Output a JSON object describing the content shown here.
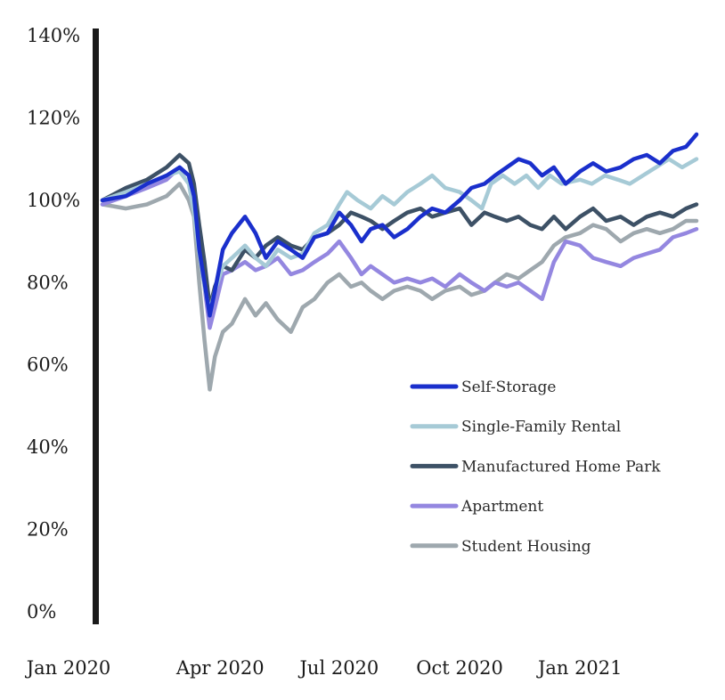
{
  "chart_data": {
    "type": "line",
    "title": "",
    "xlabel": "",
    "ylabel": "",
    "ylim": [
      0,
      140
    ],
    "xlim": [
      "2020-01-02",
      "2021-03-31"
    ],
    "grid": false,
    "legend_position": "lower-right",
    "y_ticks": [
      {
        "value": 0,
        "label": "0%"
      },
      {
        "value": 20,
        "label": "20%"
      },
      {
        "value": 40,
        "label": "40%"
      },
      {
        "value": 60,
        "label": "60%"
      },
      {
        "value": 80,
        "label": "80%"
      },
      {
        "value": 100,
        "label": "100%"
      },
      {
        "value": 120,
        "label": "120%"
      },
      {
        "value": 140,
        "label": "140%"
      }
    ],
    "x_ticks": [
      {
        "value": "2020-01-02",
        "label": "Jan 2020"
      },
      {
        "value": "2020-04-01",
        "label": "Apr 2020"
      },
      {
        "value": "2020-07-01",
        "label": "Jul 2020"
      },
      {
        "value": "2020-10-01",
        "label": "Oct 2020"
      },
      {
        "value": "2021-01-01",
        "label": "Jan 2021"
      }
    ],
    "series": [
      {
        "name": "Self-Storage",
        "color": "#1a2fcc",
        "points": [
          [
            "2020-01-02",
            100
          ],
          [
            "2020-01-20",
            101
          ],
          [
            "2020-02-05",
            104
          ],
          [
            "2020-02-20",
            106
          ],
          [
            "2020-03-01",
            108
          ],
          [
            "2020-03-08",
            106
          ],
          [
            "2020-03-12",
            101
          ],
          [
            "2020-03-16",
            88
          ],
          [
            "2020-03-20",
            80
          ],
          [
            "2020-03-24",
            72
          ],
          [
            "2020-03-28",
            78
          ],
          [
            "2020-04-03",
            88
          ],
          [
            "2020-04-10",
            92
          ],
          [
            "2020-04-20",
            96
          ],
          [
            "2020-04-28",
            92
          ],
          [
            "2020-05-06",
            86
          ],
          [
            "2020-05-15",
            90
          ],
          [
            "2020-05-25",
            88
          ],
          [
            "2020-06-03",
            86
          ],
          [
            "2020-06-12",
            91
          ],
          [
            "2020-06-22",
            92
          ],
          [
            "2020-07-01",
            97
          ],
          [
            "2020-07-10",
            94
          ],
          [
            "2020-07-18",
            90
          ],
          [
            "2020-07-25",
            93
          ],
          [
            "2020-08-03",
            94
          ],
          [
            "2020-08-12",
            91
          ],
          [
            "2020-08-22",
            93
          ],
          [
            "2020-09-01",
            96
          ],
          [
            "2020-09-10",
            98
          ],
          [
            "2020-09-20",
            97
          ],
          [
            "2020-10-01",
            100
          ],
          [
            "2020-10-10",
            103
          ],
          [
            "2020-10-20",
            104
          ],
          [
            "2020-10-28",
            106
          ],
          [
            "2020-11-06",
            108
          ],
          [
            "2020-11-15",
            110
          ],
          [
            "2020-11-24",
            109
          ],
          [
            "2020-12-03",
            106
          ],
          [
            "2020-12-12",
            108
          ],
          [
            "2020-12-21",
            104
          ],
          [
            "2021-01-01",
            107
          ],
          [
            "2021-01-11",
            109
          ],
          [
            "2021-01-21",
            107
          ],
          [
            "2021-02-01",
            108
          ],
          [
            "2021-02-11",
            110
          ],
          [
            "2021-02-21",
            111
          ],
          [
            "2021-03-03",
            109
          ],
          [
            "2021-03-13",
            112
          ],
          [
            "2021-03-23",
            113
          ],
          [
            "2021-03-31",
            116
          ]
        ]
      },
      {
        "name": "Single-Family Rental",
        "color": "#a6cad6",
        "points": [
          [
            "2020-01-02",
            100
          ],
          [
            "2020-01-20",
            102
          ],
          [
            "2020-02-05",
            104
          ],
          [
            "2020-02-20",
            106
          ],
          [
            "2020-03-01",
            107
          ],
          [
            "2020-03-08",
            104
          ],
          [
            "2020-03-12",
            97
          ],
          [
            "2020-03-16",
            87
          ],
          [
            "2020-03-20",
            79
          ],
          [
            "2020-03-24",
            73
          ],
          [
            "2020-03-28",
            78
          ],
          [
            "2020-04-03",
            84
          ],
          [
            "2020-04-10",
            86
          ],
          [
            "2020-04-20",
            89
          ],
          [
            "2020-04-28",
            86
          ],
          [
            "2020-05-06",
            84
          ],
          [
            "2020-05-15",
            88
          ],
          [
            "2020-05-25",
            86
          ],
          [
            "2020-06-03",
            87
          ],
          [
            "2020-06-12",
            92
          ],
          [
            "2020-06-22",
            94
          ],
          [
            "2020-07-01",
            99
          ],
          [
            "2020-07-07",
            102
          ],
          [
            "2020-07-15",
            100
          ],
          [
            "2020-07-25",
            98
          ],
          [
            "2020-08-03",
            101
          ],
          [
            "2020-08-12",
            99
          ],
          [
            "2020-08-22",
            102
          ],
          [
            "2020-09-01",
            104
          ],
          [
            "2020-09-10",
            106
          ],
          [
            "2020-09-20",
            103
          ],
          [
            "2020-10-01",
            102
          ],
          [
            "2020-10-10",
            100
          ],
          [
            "2020-10-18",
            98
          ],
          [
            "2020-10-25",
            104
          ],
          [
            "2020-11-03",
            106
          ],
          [
            "2020-11-12",
            104
          ],
          [
            "2020-11-21",
            106
          ],
          [
            "2020-11-30",
            103
          ],
          [
            "2020-12-09",
            106
          ],
          [
            "2020-12-18",
            104
          ],
          [
            "2021-01-01",
            105
          ],
          [
            "2021-01-10",
            104
          ],
          [
            "2021-01-20",
            106
          ],
          [
            "2021-01-30",
            105
          ],
          [
            "2021-02-08",
            104
          ],
          [
            "2021-02-18",
            106
          ],
          [
            "2021-02-28",
            108
          ],
          [
            "2021-03-10",
            110
          ],
          [
            "2021-03-20",
            108
          ],
          [
            "2021-03-31",
            110
          ]
        ]
      },
      {
        "name": "Manufactured Home Park",
        "color": "#3d5166",
        "points": [
          [
            "2020-01-02",
            100
          ],
          [
            "2020-01-20",
            103
          ],
          [
            "2020-02-05",
            105
          ],
          [
            "2020-02-20",
            108
          ],
          [
            "2020-03-01",
            111
          ],
          [
            "2020-03-08",
            109
          ],
          [
            "2020-03-12",
            104
          ],
          [
            "2020-03-16",
            94
          ],
          [
            "2020-03-20",
            85
          ],
          [
            "2020-03-24",
            74
          ],
          [
            "2020-03-28",
            79
          ],
          [
            "2020-04-03",
            84
          ],
          [
            "2020-04-10",
            83
          ],
          [
            "2020-04-20",
            88
          ],
          [
            "2020-04-28",
            86
          ],
          [
            "2020-05-06",
            89
          ],
          [
            "2020-05-15",
            91
          ],
          [
            "2020-05-25",
            89
          ],
          [
            "2020-06-03",
            88
          ],
          [
            "2020-06-12",
            91
          ],
          [
            "2020-06-22",
            92
          ],
          [
            "2020-07-01",
            94
          ],
          [
            "2020-07-10",
            97
          ],
          [
            "2020-07-18",
            96
          ],
          [
            "2020-07-25",
            95
          ],
          [
            "2020-08-03",
            93
          ],
          [
            "2020-08-12",
            95
          ],
          [
            "2020-08-22",
            97
          ],
          [
            "2020-09-01",
            98
          ],
          [
            "2020-09-10",
            96
          ],
          [
            "2020-09-20",
            97
          ],
          [
            "2020-10-01",
            98
          ],
          [
            "2020-10-10",
            94
          ],
          [
            "2020-10-20",
            97
          ],
          [
            "2020-10-28",
            96
          ],
          [
            "2020-11-06",
            95
          ],
          [
            "2020-11-15",
            96
          ],
          [
            "2020-11-24",
            94
          ],
          [
            "2020-12-03",
            93
          ],
          [
            "2020-12-12",
            96
          ],
          [
            "2020-12-21",
            93
          ],
          [
            "2021-01-01",
            96
          ],
          [
            "2021-01-11",
            98
          ],
          [
            "2021-01-21",
            95
          ],
          [
            "2021-02-01",
            96
          ],
          [
            "2021-02-11",
            94
          ],
          [
            "2021-02-21",
            96
          ],
          [
            "2021-03-03",
            97
          ],
          [
            "2021-03-13",
            96
          ],
          [
            "2021-03-23",
            98
          ],
          [
            "2021-03-31",
            99
          ]
        ]
      },
      {
        "name": "Apartment",
        "color": "#9487e0",
        "points": [
          [
            "2020-01-02",
            99
          ],
          [
            "2020-01-20",
            101
          ],
          [
            "2020-02-05",
            103
          ],
          [
            "2020-02-20",
            105
          ],
          [
            "2020-03-01",
            108
          ],
          [
            "2020-03-08",
            106
          ],
          [
            "2020-03-12",
            99
          ],
          [
            "2020-03-16",
            88
          ],
          [
            "2020-03-20",
            79
          ],
          [
            "2020-03-24",
            69
          ],
          [
            "2020-03-28",
            74
          ],
          [
            "2020-04-03",
            82
          ],
          [
            "2020-04-10",
            83
          ],
          [
            "2020-04-20",
            85
          ],
          [
            "2020-04-28",
            83
          ],
          [
            "2020-05-06",
            84
          ],
          [
            "2020-05-15",
            86
          ],
          [
            "2020-05-25",
            82
          ],
          [
            "2020-06-03",
            83
          ],
          [
            "2020-06-12",
            85
          ],
          [
            "2020-06-22",
            87
          ],
          [
            "2020-07-01",
            90
          ],
          [
            "2020-07-10",
            86
          ],
          [
            "2020-07-18",
            82
          ],
          [
            "2020-07-25",
            84
          ],
          [
            "2020-08-03",
            82
          ],
          [
            "2020-08-12",
            80
          ],
          [
            "2020-08-22",
            81
          ],
          [
            "2020-09-01",
            80
          ],
          [
            "2020-09-10",
            81
          ],
          [
            "2020-09-20",
            79
          ],
          [
            "2020-10-01",
            82
          ],
          [
            "2020-10-10",
            80
          ],
          [
            "2020-10-20",
            78
          ],
          [
            "2020-10-28",
            80
          ],
          [
            "2020-11-06",
            79
          ],
          [
            "2020-11-15",
            80
          ],
          [
            "2020-11-24",
            78
          ],
          [
            "2020-12-03",
            76
          ],
          [
            "2020-12-12",
            85
          ],
          [
            "2020-12-21",
            90
          ],
          [
            "2021-01-01",
            89
          ],
          [
            "2021-01-11",
            86
          ],
          [
            "2021-01-21",
            85
          ],
          [
            "2021-02-01",
            84
          ],
          [
            "2021-02-11",
            86
          ],
          [
            "2021-02-21",
            87
          ],
          [
            "2021-03-03",
            88
          ],
          [
            "2021-03-13",
            91
          ],
          [
            "2021-03-23",
            92
          ],
          [
            "2021-03-31",
            93
          ]
        ]
      },
      {
        "name": "Student Housing",
        "color": "#9ea8ae",
        "points": [
          [
            "2020-01-02",
            99
          ],
          [
            "2020-01-20",
            98
          ],
          [
            "2020-02-05",
            99
          ],
          [
            "2020-02-20",
            101
          ],
          [
            "2020-03-01",
            104
          ],
          [
            "2020-03-08",
            100
          ],
          [
            "2020-03-12",
            96
          ],
          [
            "2020-03-16",
            80
          ],
          [
            "2020-03-20",
            66
          ],
          [
            "2020-03-24",
            54
          ],
          [
            "2020-03-28",
            62
          ],
          [
            "2020-04-03",
            68
          ],
          [
            "2020-04-10",
            70
          ],
          [
            "2020-04-20",
            76
          ],
          [
            "2020-04-28",
            72
          ],
          [
            "2020-05-06",
            75
          ],
          [
            "2020-05-15",
            71
          ],
          [
            "2020-05-25",
            68
          ],
          [
            "2020-06-03",
            74
          ],
          [
            "2020-06-12",
            76
          ],
          [
            "2020-06-22",
            80
          ],
          [
            "2020-07-01",
            82
          ],
          [
            "2020-07-10",
            79
          ],
          [
            "2020-07-18",
            80
          ],
          [
            "2020-07-25",
            78
          ],
          [
            "2020-08-03",
            76
          ],
          [
            "2020-08-12",
            78
          ],
          [
            "2020-08-22",
            79
          ],
          [
            "2020-09-01",
            78
          ],
          [
            "2020-09-10",
            76
          ],
          [
            "2020-09-20",
            78
          ],
          [
            "2020-10-01",
            79
          ],
          [
            "2020-10-10",
            77
          ],
          [
            "2020-10-20",
            78
          ],
          [
            "2020-10-28",
            80
          ],
          [
            "2020-11-06",
            82
          ],
          [
            "2020-11-15",
            81
          ],
          [
            "2020-11-24",
            83
          ],
          [
            "2020-12-03",
            85
          ],
          [
            "2020-12-12",
            89
          ],
          [
            "2020-12-21",
            91
          ],
          [
            "2021-01-01",
            92
          ],
          [
            "2021-01-11",
            94
          ],
          [
            "2021-01-21",
            93
          ],
          [
            "2021-02-01",
            90
          ],
          [
            "2021-02-11",
            92
          ],
          [
            "2021-02-21",
            93
          ],
          [
            "2021-03-03",
            92
          ],
          [
            "2021-03-13",
            93
          ],
          [
            "2021-03-23",
            95
          ],
          [
            "2021-03-31",
            95
          ]
        ]
      }
    ]
  }
}
